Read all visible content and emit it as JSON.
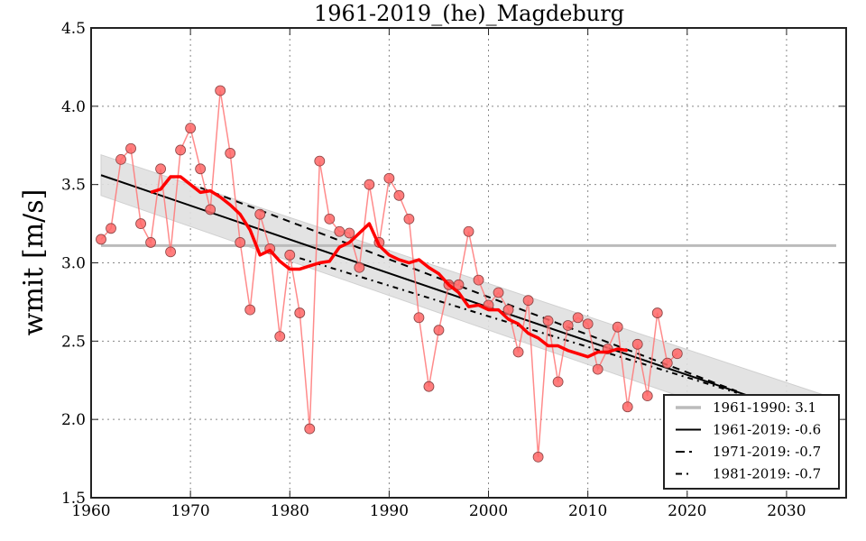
{
  "chart_data": {
    "type": "scatter",
    "title": "1961-2019_(he)_Magdeburg",
    "xlabel": "",
    "ylabel": "wmit [m/s]",
    "xlim": [
      1960,
      2036
    ],
    "ylim": [
      1.5,
      4.5
    ],
    "xticks": [
      1960,
      1970,
      1980,
      1990,
      2000,
      2010,
      2020,
      2030
    ],
    "xtick_labels": [
      "1960",
      "1970",
      "1980",
      "1990",
      "2000",
      "2010",
      "2020",
      "2030"
    ],
    "yticks": [
      1.5,
      2.0,
      2.5,
      3.0,
      3.5,
      4.0,
      4.5
    ],
    "ytick_labels": [
      "1.5",
      "2.0",
      "2.5",
      "3.0",
      "3.5",
      "4.0",
      "4.5"
    ],
    "grid": true,
    "legend_position": "bottom-right",
    "colors": {
      "points": "#ff6666",
      "points_line": "#ff7777",
      "rolling_mean": "#ff0000",
      "reference": "#bbbbbb",
      "trend": "#000000",
      "band": "#e0e0e0"
    },
    "series": [
      {
        "name": "annual values",
        "kind": "points",
        "x": [
          1961,
          1962,
          1963,
          1964,
          1965,
          1966,
          1967,
          1968,
          1969,
          1970,
          1971,
          1972,
          1973,
          1974,
          1975,
          1976,
          1977,
          1978,
          1979,
          1980,
          1981,
          1982,
          1983,
          1984,
          1985,
          1986,
          1987,
          1988,
          1989,
          1990,
          1991,
          1992,
          1993,
          1994,
          1995,
          1996,
          1997,
          1998,
          1999,
          2000,
          2001,
          2002,
          2003,
          2004,
          2005,
          2006,
          2007,
          2008,
          2009,
          2010,
          2011,
          2012,
          2013,
          2014,
          2015,
          2016,
          2017,
          2018,
          2019
        ],
        "y": [
          3.15,
          3.22,
          3.66,
          3.73,
          3.25,
          3.13,
          3.6,
          3.07,
          3.72,
          3.86,
          3.6,
          3.34,
          4.1,
          3.7,
          3.13,
          2.7,
          3.31,
          3.09,
          2.53,
          3.05,
          2.68,
          1.94,
          3.65,
          3.28,
          3.2,
          3.19,
          2.97,
          3.5,
          3.13,
          3.54,
          3.43,
          3.28,
          2.65,
          2.21,
          2.57,
          2.86,
          2.86,
          3.2,
          2.89,
          2.73,
          2.81,
          2.7,
          2.43,
          2.76,
          1.76,
          2.63,
          2.24,
          2.6,
          2.65,
          2.61,
          2.32,
          2.45,
          2.59,
          2.08,
          2.48,
          2.15,
          2.68,
          2.36,
          2.42
        ]
      },
      {
        "name": "rolling mean",
        "kind": "line",
        "x": [
          1966,
          1967,
          1968,
          1969,
          1970,
          1971,
          1972,
          1973,
          1974,
          1975,
          1976,
          1977,
          1978,
          1979,
          1980,
          1981,
          1982,
          1983,
          1984,
          1985,
          1986,
          1987,
          1988,
          1989,
          1990,
          1991,
          1992,
          1993,
          1994,
          1995,
          1996,
          1997,
          1998,
          1999,
          2000,
          2001,
          2002,
          2003,
          2004,
          2005,
          2006,
          2007,
          2008,
          2009,
          2010,
          2011,
          2012,
          2013,
          2014
        ],
        "y": [
          3.45,
          3.47,
          3.55,
          3.55,
          3.5,
          3.45,
          3.46,
          3.42,
          3.37,
          3.31,
          3.21,
          3.05,
          3.08,
          3.01,
          2.96,
          2.96,
          2.98,
          3.0,
          3.01,
          3.1,
          3.13,
          3.19,
          3.25,
          3.11,
          3.05,
          3.02,
          3.0,
          3.02,
          2.97,
          2.93,
          2.86,
          2.81,
          2.72,
          2.73,
          2.7,
          2.7,
          2.64,
          2.61,
          2.55,
          2.52,
          2.47,
          2.47,
          2.44,
          2.42,
          2.4,
          2.43,
          2.43,
          2.45,
          2.44
        ]
      },
      {
        "name": "1961-1990: 3.1",
        "kind": "reference",
        "x": [
          1961,
          2035
        ],
        "y": [
          3.11,
          3.11
        ]
      },
      {
        "name": "1961-2019: -0.6",
        "kind": "trend-solid",
        "x": [
          1961,
          2035
        ],
        "y": [
          3.56,
          1.96
        ]
      },
      {
        "name": "1971-2019: -0.7",
        "kind": "trend-dashed",
        "x": [
          1971,
          2025
        ],
        "y": [
          3.48,
          2.18
        ]
      },
      {
        "name": "1981-2019: -0.7",
        "kind": "trend-dashdot",
        "x": [
          1981,
          2025
        ],
        "y": [
          3.03,
          2.17
        ]
      },
      {
        "name": "confidence band",
        "kind": "band",
        "x": [
          1961,
          2035
        ],
        "upper": [
          3.69,
          2.13
        ],
        "lower": [
          3.43,
          1.8
        ]
      }
    ],
    "legend": [
      {
        "label": "1961-1990: 3.1",
        "style": "reference"
      },
      {
        "label": "1961-2019: -0.6",
        "style": "solid"
      },
      {
        "label": "1971-2019: -0.7",
        "style": "dashed"
      },
      {
        "label": "1981-2019: -0.7",
        "style": "dashdot"
      }
    ]
  }
}
